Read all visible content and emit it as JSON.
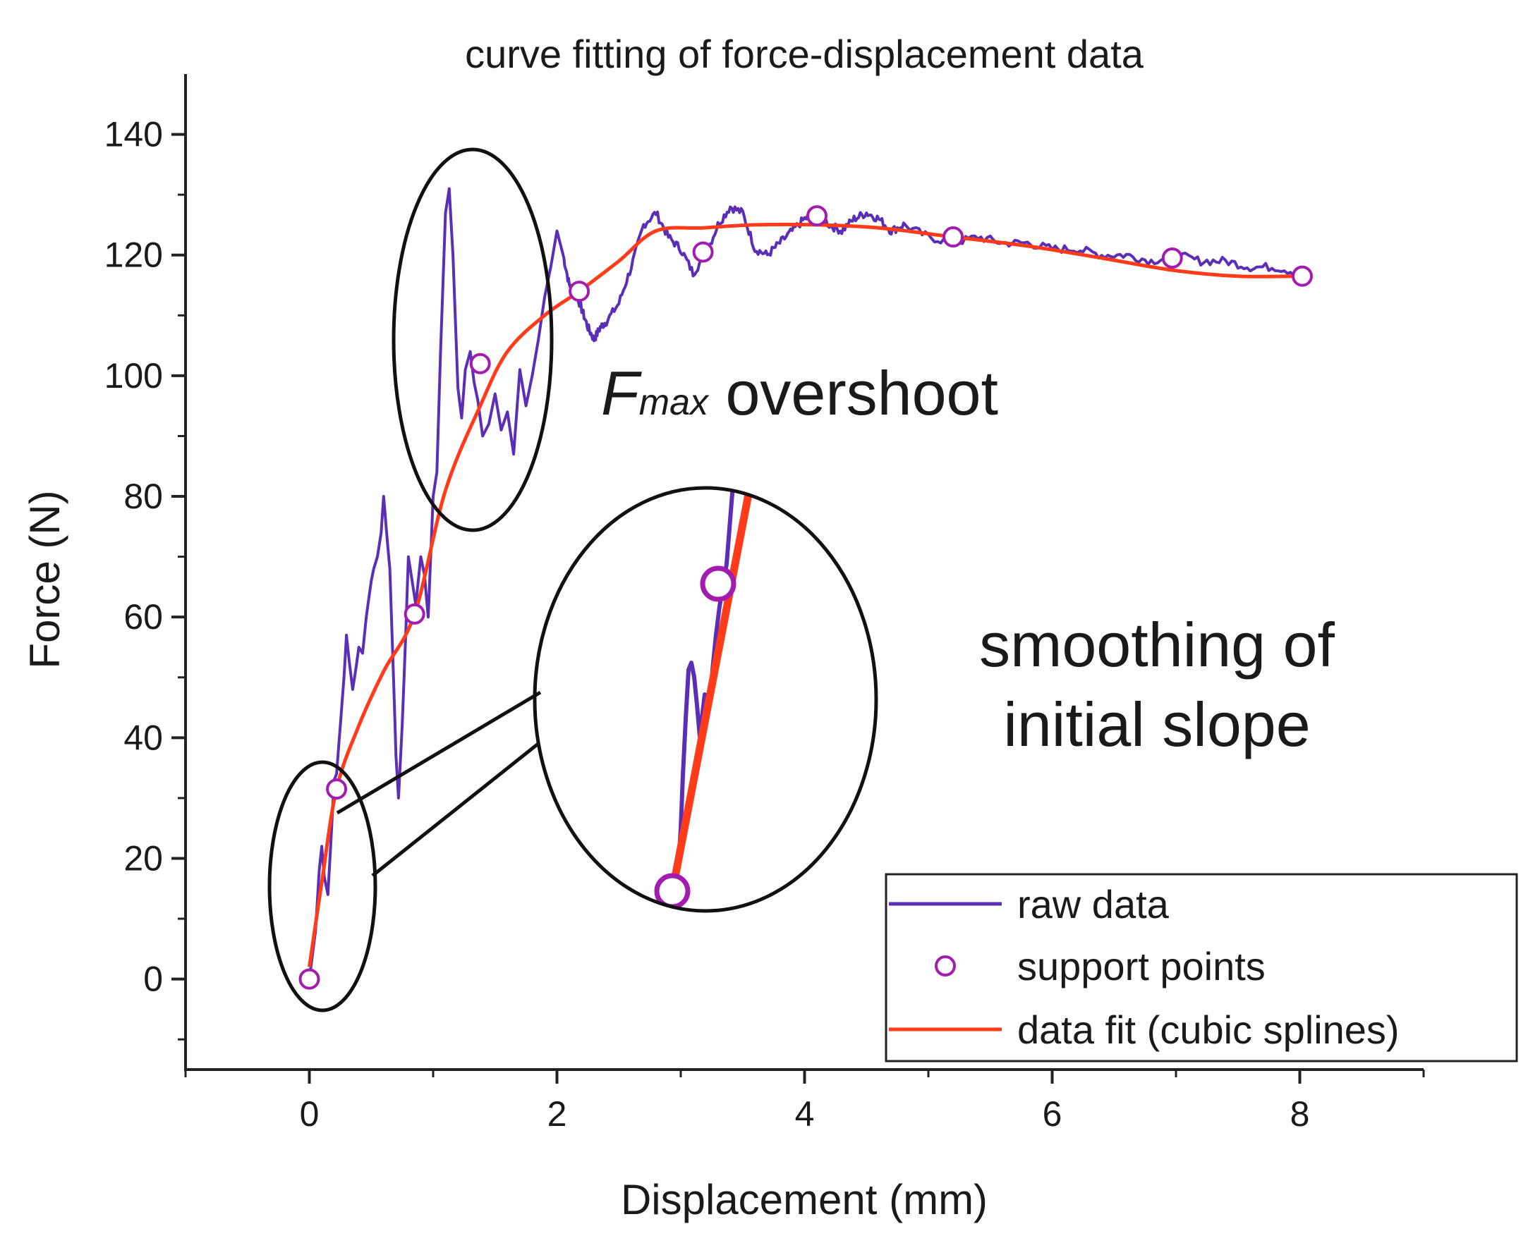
{
  "chart_data": {
    "type": "line",
    "title": "curve fitting of force-displacement data",
    "xlabel": "Displacement (mm)",
    "ylabel": "Force (N)",
    "xlim": [
      -1,
      9
    ],
    "ylim": [
      -15,
      150
    ],
    "xticks": [
      0,
      2,
      4,
      6,
      8
    ],
    "yticks": [
      0,
      20,
      40,
      60,
      80,
      100,
      120,
      140
    ],
    "legend_position": "bottom-right",
    "series": [
      {
        "name": "raw data",
        "kind": "line",
        "color": "#5b2fb5",
        "x": [
          0,
          0.05,
          0.08,
          0.1,
          0.12,
          0.15,
          0.18,
          0.2,
          0.22,
          0.25,
          0.28,
          0.3,
          0.32,
          0.35,
          0.38,
          0.4,
          0.43,
          0.46,
          0.5,
          0.52,
          0.55,
          0.58,
          0.6,
          0.62,
          0.65,
          0.68,
          0.7,
          0.72,
          0.75,
          0.78,
          0.8,
          0.83,
          0.86,
          0.9,
          0.93,
          0.96,
          1.0,
          1.03,
          1.06,
          1.1,
          1.13,
          1.16,
          1.2,
          1.23,
          1.26,
          1.3,
          1.33,
          1.36,
          1.4,
          1.45,
          1.5,
          1.55,
          1.6,
          1.65,
          1.7,
          1.75,
          1.8,
          1.85,
          1.9,
          1.95,
          2.0,
          2.05,
          2.1,
          2.15,
          2.2,
          2.25,
          2.3,
          2.35,
          2.4,
          2.5,
          2.6,
          2.7,
          2.8,
          2.9,
          3.0,
          3.1,
          3.2,
          3.3,
          3.4,
          3.5,
          3.6,
          3.7,
          3.8,
          3.9,
          4.0,
          4.1,
          4.2,
          4.3,
          4.4,
          4.5,
          4.6,
          4.7,
          4.8,
          5.0,
          5.2,
          5.4,
          5.6,
          5.8,
          6.0,
          6.2,
          6.4,
          6.6,
          6.8,
          7.0,
          7.2,
          7.4,
          7.6,
          7.8,
          8.0
        ],
        "y": [
          0,
          8,
          18,
          22,
          17,
          14,
          25,
          33,
          34,
          42,
          50,
          57,
          53,
          48,
          52,
          55,
          54,
          60,
          66,
          68,
          70,
          74,
          80,
          75,
          68,
          50,
          37,
          30,
          42,
          58,
          70,
          66,
          62,
          70,
          67,
          60,
          80,
          84,
          104,
          127,
          131,
          120,
          98,
          93,
          101,
          104,
          99,
          96,
          90,
          92,
          97,
          91,
          94,
          87,
          101,
          95,
          100,
          106,
          113,
          118,
          124,
          120,
          115,
          114,
          111,
          108,
          106,
          108,
          109,
          112,
          118,
          125,
          127,
          123,
          121,
          117,
          120,
          125,
          128,
          127,
          121,
          120,
          122,
          124,
          126,
          127,
          125,
          124,
          126,
          127,
          126,
          124,
          125,
          123,
          122,
          123,
          122,
          122,
          121,
          121,
          120,
          120,
          119,
          120,
          119,
          119,
          118,
          118,
          117
        ]
      },
      {
        "name": "support points",
        "kind": "scatter",
        "color": "#a21caf",
        "x": [
          0,
          0.22,
          0.85,
          1.38,
          2.18,
          3.18,
          4.1,
          5.2,
          6.97,
          8.02
        ],
        "y": [
          0,
          31.5,
          60.5,
          102,
          114,
          120.5,
          126.5,
          123,
          119.5,
          116.5
        ]
      },
      {
        "name": "data fit (cubic splines)",
        "kind": "line",
        "color": "#ff3b1a",
        "x": [
          0,
          0.1,
          0.22,
          0.4,
          0.6,
          0.85,
          1.1,
          1.38,
          1.6,
          1.9,
          2.18,
          2.5,
          2.8,
          3.18,
          3.6,
          4.1,
          4.6,
          5.2,
          5.8,
          6.4,
          6.97,
          7.5,
          8.02
        ],
        "y": [
          2,
          16,
          31.5,
          42,
          51,
          60.5,
          81,
          95,
          104,
          110,
          114,
          119,
          124,
          124.5,
          125,
          125,
          124.5,
          123,
          121.5,
          119.5,
          117.5,
          116.5,
          116.5
        ]
      }
    ],
    "annotations": [
      {
        "text_main": "F",
        "text_sub": "max",
        "text_rest": " overshoot"
      },
      {
        "line1": "smoothing of",
        "line2": "initial slope"
      }
    ]
  }
}
